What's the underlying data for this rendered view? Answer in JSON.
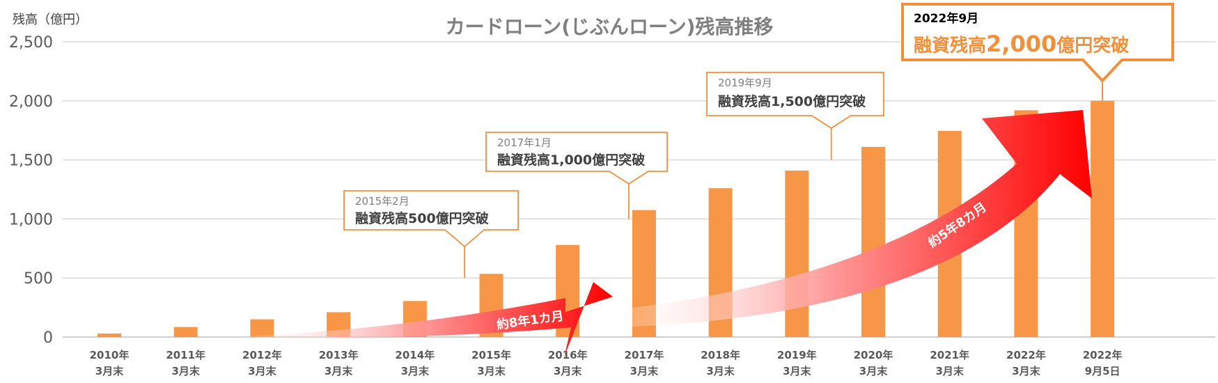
{
  "chart_data": {
    "type": "bar",
    "title": "カードローン(じぶんローン)残高推移",
    "ylabel": "残高（億円）",
    "ylim": [
      0,
      2500
    ],
    "yticks": [
      "0",
      "500",
      "1,000",
      "1,500",
      "2,000",
      "2,500"
    ],
    "ytick_values": [
      0,
      500,
      1000,
      1500,
      2000,
      2500
    ],
    "grid": true,
    "categories": [
      [
        "2010年",
        "3月末"
      ],
      [
        "2011年",
        "3月末"
      ],
      [
        "2012年",
        "3月末"
      ],
      [
        "2013年",
        "3月末"
      ],
      [
        "2014年",
        "3月末"
      ],
      [
        "2015年",
        "3月末"
      ],
      [
        "2016年",
        "3月末"
      ],
      [
        "2017年",
        "3月末"
      ],
      [
        "2018年",
        "3月末"
      ],
      [
        "2019年",
        "3月末"
      ],
      [
        "2020年",
        "3月末"
      ],
      [
        "2021年",
        "3月末"
      ],
      [
        "2022年",
        "3月末"
      ],
      [
        "2022年",
        "9月5日"
      ]
    ],
    "values": [
      30,
      85,
      150,
      210,
      305,
      535,
      780,
      1075,
      1260,
      1410,
      1610,
      1745,
      1920,
      2000
    ],
    "bar_color": "#f79646",
    "annotations": [
      {
        "date": "2015年2月",
        "text": "融資残高500億円突破",
        "value": 500,
        "index": 4.65
      },
      {
        "date": "2017年1月",
        "text": "融資残高1,000億円突破",
        "value": 1000,
        "index": 6.8
      },
      {
        "date": "2019年9月",
        "text": "融資残高1,500億円突破",
        "value": 1500,
        "index": 9.45
      },
      {
        "date": "2022年9月",
        "text_pre": "融資残高",
        "text_num": "2,000",
        "text_post": "億円突破",
        "value": 2000,
        "index": 13
      }
    ],
    "arrows": [
      {
        "label": "約8年1カ月",
        "color": "#ff0000"
      },
      {
        "label": "約5年8カ月",
        "color": "#ff0000"
      }
    ]
  }
}
